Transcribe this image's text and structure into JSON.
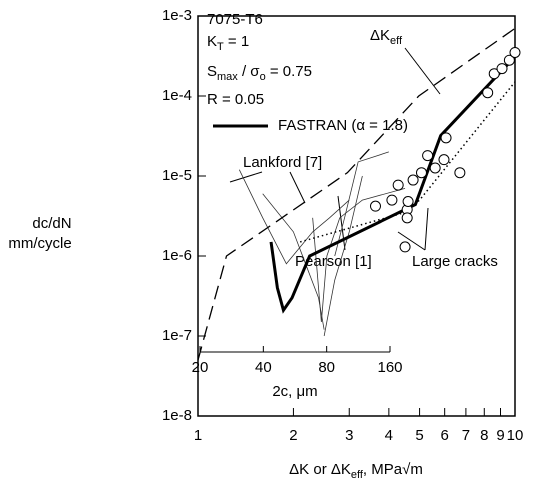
{
  "chart_data": {
    "type": "line",
    "xlog": true,
    "ylog": true,
    "xlim": [
      1,
      10
    ],
    "ylim": [
      1e-08,
      0.001
    ],
    "xticks": [
      1,
      2,
      3,
      4,
      5,
      6,
      7,
      8,
      9,
      10
    ],
    "yticks": [
      {
        "value": 1e-08,
        "label": "1e-8"
      },
      {
        "value": 1e-07,
        "label": "1e-7"
      },
      {
        "value": 1e-06,
        "label": "1e-6"
      },
      {
        "value": 1e-05,
        "label": "1e-5"
      },
      {
        "value": 0.0001,
        "label": "1e-4"
      },
      {
        "value": 0.001,
        "label": "1e-3"
      }
    ],
    "x_label": [
      "ΔK or ΔK",
      "eff",
      ",  MPa√m"
    ],
    "y_label": [
      "dc/dN",
      "mm/cycle"
    ],
    "info": {
      "material": "7075-T6",
      "kt": [
        "K",
        "T",
        " = 1"
      ],
      "smax": [
        "S",
        "max",
        " / σ",
        "o",
        " = 0.75"
      ],
      "r": "R = 0.05"
    },
    "series": [
      {
        "name": "FASTRAN (α = 1.8)",
        "style": "thick",
        "color": "#000",
        "x": [
          1.7,
          1.78,
          1.86,
          1.98,
          2.25,
          4.85,
          5.83,
          9.5
        ],
        "y": [
          1.5e-06,
          4e-07,
          2.1e-07,
          3e-07,
          1e-06,
          4.4e-06,
          3.2e-05,
          0.00025
        ]
      },
      {
        "name": "ΔK",
        "name_sub": "eff",
        "style": "dashed",
        "color": "#000",
        "x": [
          1,
          1.23,
          2.96,
          4.97,
          10
        ],
        "y": [
          5e-08,
          1e-06,
          1.1e-05,
          0.0001,
          0.0007
        ]
      },
      {
        "name": "Pearson [1]",
        "style": "dotted",
        "color": "#000",
        "x": [
          2.1,
          4.5,
          5,
          10
        ],
        "y": [
          1.5e-06,
          3.5e-06,
          5e-06,
          0.00015
        ]
      }
    ],
    "lankford_label": "Lankford [7]",
    "lankford": [
      {
        "x": [
          1.35,
          1.6,
          1.9,
          2.3,
          2.6,
          3.0
        ],
        "y": [
          1.2e-05,
          3e-06,
          8e-07,
          2e-06,
          3e-06,
          5e-06
        ]
      },
      {
        "x": [
          1.6,
          2.0,
          2.4,
          2.5
        ],
        "y": [
          6e-06,
          2e-06,
          3e-07,
          1.2e-07
        ]
      },
      {
        "x": [
          2.3,
          2.45,
          2.55,
          2.8,
          3.3,
          4.5
        ],
        "y": [
          3e-06,
          1.5e-07,
          1e-06,
          3e-06,
          5e-06,
          7e-06
        ]
      },
      {
        "x": [
          2.5,
          2.7,
          3.0,
          3.3
        ],
        "y": [
          1e-07,
          5e-07,
          2e-06,
          1e-05
        ]
      },
      {
        "x": [
          2.7,
          2.9,
          3.2,
          4.0
        ],
        "y": [
          1e-06,
          3e-06,
          1.5e-05,
          2e-05
        ]
      }
    ],
    "large_cracks": {
      "label": "Large cracks",
      "x": [
        3.63,
        4.09,
        4.28,
        4.57,
        4.57,
        4.6,
        4.5,
        4.77,
        5.07,
        5.3,
        5.6,
        5.97,
        6.06,
        6.7,
        8.2,
        8.6,
        9.1,
        9.6,
        10
      ],
      "y": [
        4.2e-06,
        5e-06,
        7.7e-06,
        3.8e-06,
        3e-06,
        4.8e-06,
        1.3e-06,
        8.9e-06,
        1.1e-05,
        1.8e-05,
        1.26e-05,
        1.6e-05,
        3e-05,
        1.1e-05,
        0.00011,
        0.00019,
        0.00022,
        0.00028,
        0.00035
      ]
    },
    "inset_axis": {
      "label": "2c, μm",
      "lim": [
        20,
        160
      ],
      "ticks": [
        20,
        40,
        80,
        160
      ]
    }
  }
}
